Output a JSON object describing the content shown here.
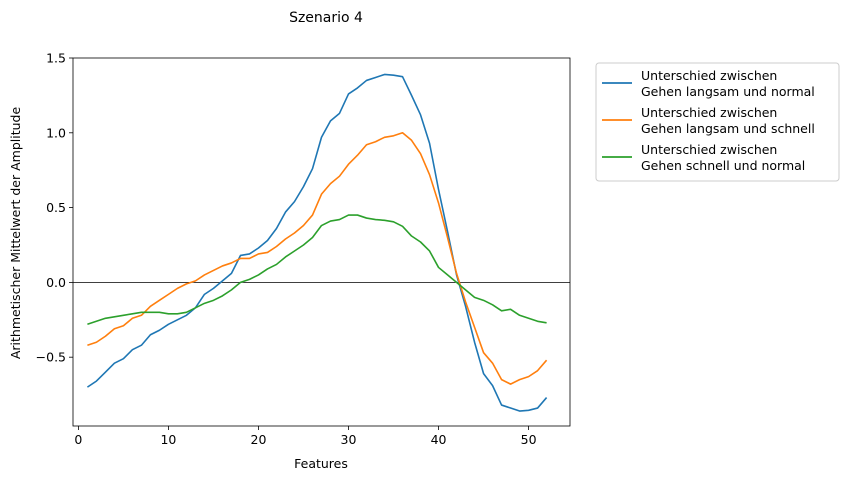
{
  "chart_data": {
    "type": "line",
    "title": "Szenario 4",
    "xlabel": "Features",
    "ylabel": "Arithmetischer Mittelwert der Amplitude",
    "xlim": [
      -0.6,
      54.6
    ],
    "ylim": [
      -0.96,
      1.5
    ],
    "xticks": [
      0,
      10,
      20,
      30,
      40,
      50
    ],
    "yticks": [
      -0.5,
      0.0,
      0.5,
      1.0,
      1.5
    ],
    "xtick_labels": [
      "0",
      "10",
      "20",
      "30",
      "40",
      "50"
    ],
    "ytick_labels": [
      "−0.5",
      "0.0",
      "0.5",
      "1.0",
      "1.5"
    ],
    "hline": 0.0,
    "grid": false,
    "legend_position": "outside-right",
    "x": [
      1,
      2,
      3,
      4,
      5,
      6,
      7,
      8,
      9,
      10,
      11,
      12,
      13,
      14,
      15,
      16,
      17,
      18,
      19,
      20,
      21,
      22,
      23,
      24,
      25,
      26,
      27,
      28,
      29,
      30,
      31,
      32,
      33,
      34,
      35,
      36,
      37,
      38,
      39,
      40,
      41,
      42,
      43,
      44,
      45,
      46,
      47,
      48,
      49,
      50,
      51,
      52
    ],
    "series": [
      {
        "name": [
          "Unterschied zwischen",
          "Gehen langsam und normal"
        ],
        "color": "#1f77b4",
        "values": [
          -0.7,
          -0.66,
          -0.6,
          -0.54,
          -0.51,
          -0.45,
          -0.42,
          -0.35,
          -0.32,
          -0.28,
          -0.25,
          -0.22,
          -0.17,
          -0.08,
          -0.04,
          0.01,
          0.06,
          0.18,
          0.19,
          0.23,
          0.28,
          0.36,
          0.47,
          0.54,
          0.64,
          0.76,
          0.97,
          1.08,
          1.13,
          1.26,
          1.3,
          1.35,
          1.37,
          1.39,
          1.385,
          1.375,
          1.25,
          1.12,
          0.93,
          0.62,
          0.34,
          0.05,
          -0.16,
          -0.4,
          -0.61,
          -0.69,
          -0.82,
          -0.84,
          -0.86,
          -0.855,
          -0.84,
          -0.77
        ]
      },
      {
        "name": [
          "Unterschied zwischen",
          "Gehen langsam und schnell"
        ],
        "color": "#ff7f0e",
        "values": [
          -0.42,
          -0.4,
          -0.36,
          -0.31,
          -0.29,
          -0.24,
          -0.22,
          -0.16,
          -0.12,
          -0.08,
          -0.04,
          -0.01,
          0.01,
          0.05,
          0.08,
          0.11,
          0.13,
          0.16,
          0.16,
          0.19,
          0.2,
          0.24,
          0.29,
          0.33,
          0.38,
          0.45,
          0.59,
          0.66,
          0.71,
          0.79,
          0.85,
          0.92,
          0.94,
          0.97,
          0.98,
          1.0,
          0.95,
          0.86,
          0.72,
          0.53,
          0.3,
          0.06,
          -0.13,
          -0.3,
          -0.47,
          -0.54,
          -0.65,
          -0.68,
          -0.65,
          -0.63,
          -0.59,
          -0.52
        ]
      },
      {
        "name": [
          "Unterschied zwischen",
          "Gehen schnell und normal"
        ],
        "color": "#2ca02c",
        "values": [
          -0.28,
          -0.26,
          -0.24,
          -0.23,
          -0.22,
          -0.21,
          -0.2,
          -0.2,
          -0.2,
          -0.21,
          -0.21,
          -0.2,
          -0.17,
          -0.14,
          -0.12,
          -0.09,
          -0.05,
          0.0,
          0.02,
          0.05,
          0.09,
          0.12,
          0.17,
          0.21,
          0.25,
          0.3,
          0.38,
          0.41,
          0.42,
          0.45,
          0.45,
          0.43,
          0.42,
          0.415,
          0.405,
          0.375,
          0.31,
          0.27,
          0.21,
          0.1,
          0.05,
          0.0,
          -0.05,
          -0.1,
          -0.12,
          -0.15,
          -0.19,
          -0.18,
          -0.22,
          -0.24,
          -0.26,
          -0.27
        ]
      }
    ]
  }
}
